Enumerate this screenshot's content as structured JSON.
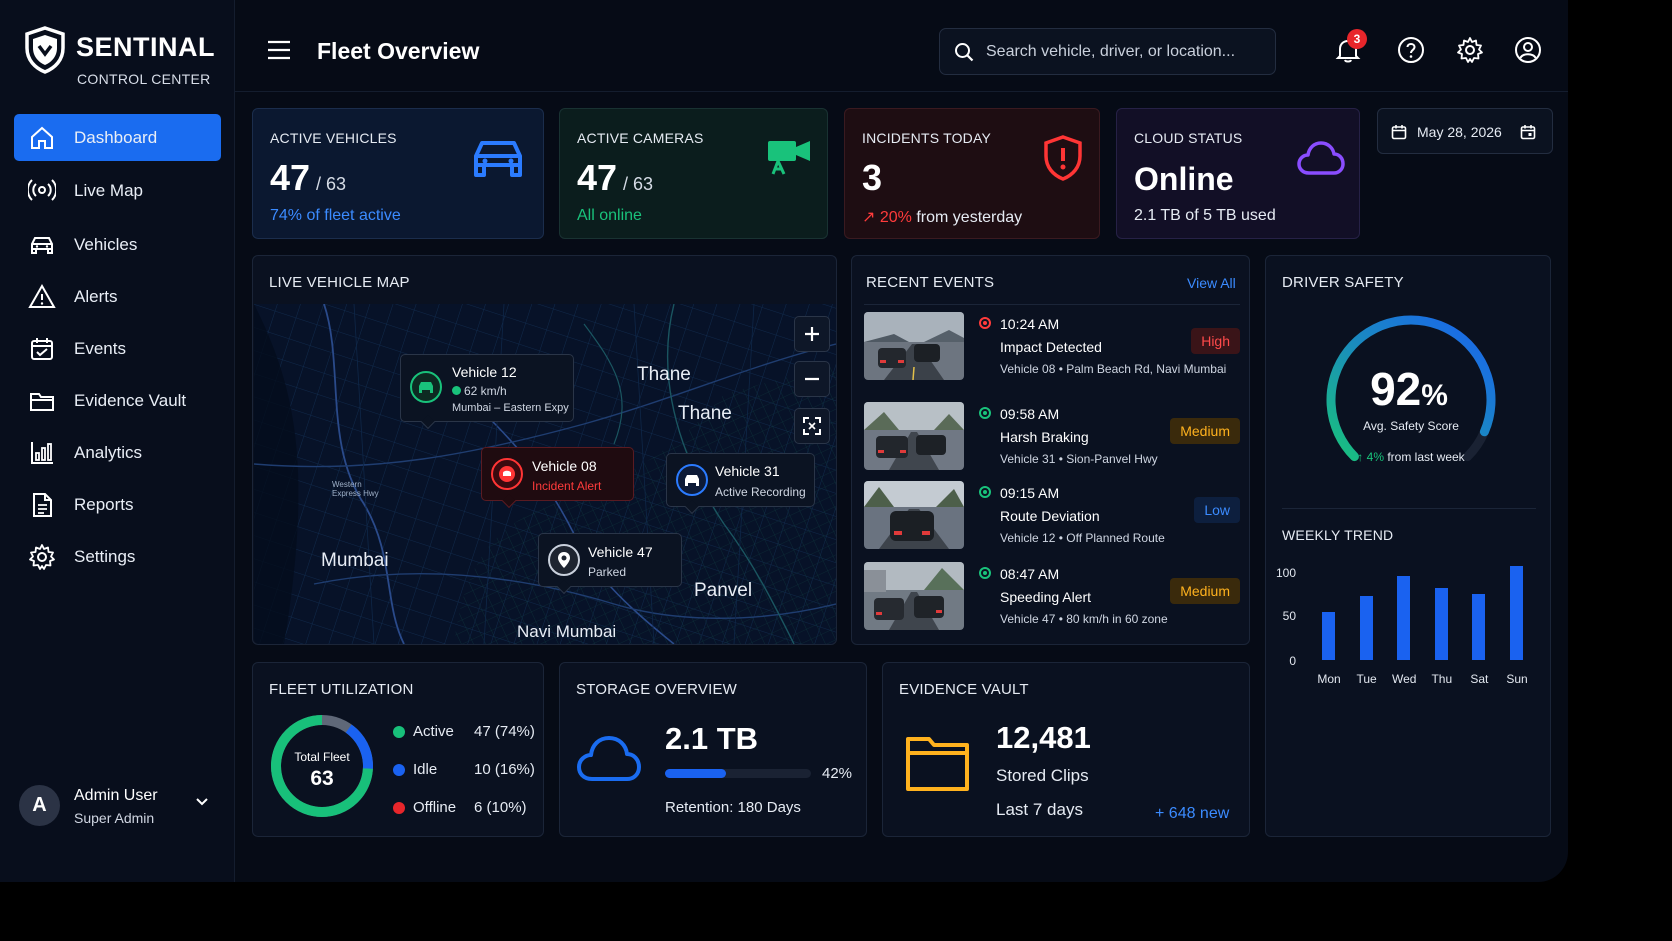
{
  "sidebar": {
    "brand": "SENTINAL",
    "subtitle": "CONTROL CENTER",
    "items": [
      {
        "label": "Dashboard",
        "icon": "home-icon",
        "active": true
      },
      {
        "label": "Live Map",
        "icon": "broadcast-icon"
      },
      {
        "label": "Vehicles",
        "icon": "car-icon"
      },
      {
        "label": "Alerts",
        "icon": "warning-icon"
      },
      {
        "label": "Events",
        "icon": "calendar-icon"
      },
      {
        "label": "Evidence Vault",
        "icon": "folder-icon"
      },
      {
        "label": "Analytics",
        "icon": "bar-chart-icon"
      },
      {
        "label": "Reports",
        "icon": "document-icon"
      },
      {
        "label": "Settings",
        "icon": "gear-icon"
      }
    ],
    "user": {
      "initial": "A",
      "name": "Admin User",
      "role": "Super Admin"
    }
  },
  "header": {
    "title": "Fleet Overview",
    "search_placeholder": "Search vehicle, driver, or location...",
    "notifications": "3"
  },
  "date": "May 28, 2026",
  "kpis": {
    "vehicles": {
      "label": "ACTIVE VEHICLES",
      "value": "47",
      "of": "/ 63",
      "sub": "74% of fleet active"
    },
    "cameras": {
      "label": "ACTIVE CAMERAS",
      "value": "47",
      "of": "/ 63",
      "sub": "All online"
    },
    "incidents": {
      "label": "INCIDENTS TODAY",
      "value": "3",
      "change": "20%",
      "sub": "from yesterday"
    },
    "cloud": {
      "label": "CLOUD STATUS",
      "value": "Online",
      "sub": "2.1 TB of 5 TB used"
    }
  },
  "map": {
    "title": "LIVE VEHICLE MAP",
    "cities": [
      "Thane",
      "Thane",
      "Mumbai",
      "Panvel",
      "Navi Mumbai"
    ],
    "road_label": "Western Express Hwy",
    "popups": {
      "v12": {
        "title": "Vehicle 12",
        "speed": "62 km/h",
        "location": "Mumbai – Eastern Expy"
      },
      "v08": {
        "title": "Vehicle 08",
        "status": "Incident Alert"
      },
      "v31": {
        "title": "Vehicle 31",
        "status": "Active Recording"
      },
      "v47": {
        "title": "Vehicle 47",
        "status": "Parked"
      }
    }
  },
  "events": {
    "title": "RECENT EVENTS",
    "view_all": "View All",
    "items": [
      {
        "time": "10:24 AM",
        "title": "Impact Detected",
        "desc": "Vehicle 08 • Palm Beach Rd, Navi Mumbai",
        "severity": "High"
      },
      {
        "time": "09:58 AM",
        "title": "Harsh Braking",
        "desc": "Vehicle 31 • Sion-Panvel Hwy",
        "severity": "Medium"
      },
      {
        "time": "09:15 AM",
        "title": "Route Deviation",
        "desc": "Vehicle 12 • Off Planned Route",
        "severity": "Low"
      },
      {
        "time": "08:47 AM",
        "title": "Speeding Alert",
        "desc": "Vehicle 47 • 80 km/h in 60 zone",
        "severity": "Medium"
      }
    ]
  },
  "safety": {
    "title": "DRIVER SAFETY",
    "score": "92",
    "unit": "%",
    "score_fraction": 0.92,
    "label": "Avg. Safety Score",
    "change": "4%",
    "change_sub": "from last week",
    "trend_title": "WEEKLY TREND"
  },
  "chart_data": {
    "type": "bar",
    "title": "WEEKLY TREND",
    "categories": [
      "Mon",
      "Tue",
      "Wed",
      "Thu",
      "Sat",
      "Sun"
    ],
    "values": [
      55,
      73,
      97,
      83,
      76,
      108
    ],
    "yticks": [
      "100",
      "50",
      "0"
    ],
    "ylim": [
      0,
      100
    ],
    "color": "#1a62f0"
  },
  "utilization": {
    "title": "FLEET UTILIZATION",
    "center_label": "Total Fleet",
    "center_value": "63",
    "legend": [
      {
        "label": "Active",
        "value": "47 (74%)",
        "color": "#18c07a",
        "fraction": 0.74
      },
      {
        "label": "Idle",
        "value": "10 (16%)",
        "color": "#1a62f0",
        "fraction": 0.16
      },
      {
        "label": "Offline",
        "value": "6 (10%)",
        "color": "#e8262b",
        "fraction": 0.1
      }
    ]
  },
  "storage": {
    "title": "STORAGE OVERVIEW",
    "value": "2.1 TB",
    "percent": "42%",
    "fraction": 0.42,
    "retention": "Retention: 180 Days"
  },
  "vault": {
    "title": "EVIDENCE VAULT",
    "count": "12,481",
    "label": "Stored Clips",
    "period": "Last 7 days",
    "new": "+ 648 new"
  }
}
